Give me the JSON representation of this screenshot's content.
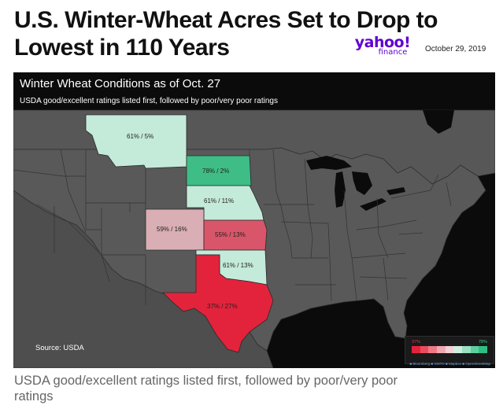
{
  "article": {
    "headline_line1": "U.S. Winter-Wheat Acres Set to Drop to",
    "headline_line2": "Lowest in 110 Years",
    "brand_main": "yahoo!",
    "brand_sub": "finance",
    "date": "October 29, 2019",
    "caption_line1": "USDA good/excellent ratings listed first, followed by poor/very poor",
    "caption_line2": "ratings"
  },
  "map": {
    "title": "Winter Wheat Conditions as of Oct. 27",
    "subtitle": "USDA good/excellent ratings listed first, followed by poor/very poor ratings",
    "source": "Source: USDA",
    "attribution": "■ Bloomberg ■ GMTO ■ Mapbox ■ OpenStreetMap",
    "legend_min": "37%",
    "legend_max": "78%",
    "legend_colors": [
      "#e3233c",
      "#e84c5c",
      "#ec7a86",
      "#f0a8b0",
      "#f2d0d4",
      "#cfeee1",
      "#9be0c3",
      "#5ccf9f",
      "#2fbf83"
    ],
    "colors": {
      "background": "#0b0b0b",
      "land": "#595959",
      "land_border": "#303030",
      "ocean": "#0b0b0b"
    },
    "states": [
      {
        "name": "Montana",
        "label": "61% / 5%",
        "good": 61,
        "poor": 5,
        "fill": "#c4eada"
      },
      {
        "name": "South Dakota",
        "label": "78% / 2%",
        "good": 78,
        "poor": 2,
        "fill": "#3fbd86"
      },
      {
        "name": "Nebraska",
        "label": "61% / 11%",
        "good": 61,
        "poor": 11,
        "fill": "#c4eada"
      },
      {
        "name": "Colorado",
        "label": "59% / 16%",
        "good": 59,
        "poor": 16,
        "fill": "#d9aeb4"
      },
      {
        "name": "Kansas",
        "label": "55% / 13%",
        "good": 55,
        "poor": 13,
        "fill": "#d9566a"
      },
      {
        "name": "Oklahoma",
        "label": "61% / 13%",
        "good": 61,
        "poor": 13,
        "fill": "#c4eada"
      },
      {
        "name": "Texas",
        "label": "37% / 27%",
        "good": 37,
        "poor": 27,
        "fill": "#e3233c"
      }
    ]
  }
}
